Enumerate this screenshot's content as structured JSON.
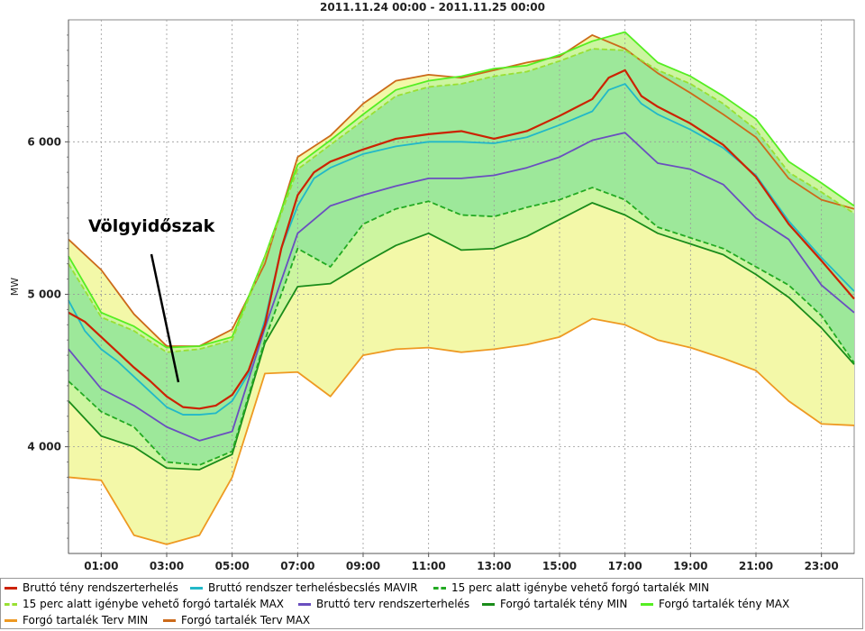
{
  "title": "2011.11.24 00:00 - 2011.11.25 00:00",
  "annotation": "Völgyidőszak",
  "chart_data": {
    "type": "line",
    "title": "2011.11.24 00:00 - 2011.11.25 00:00",
    "xlabel": "",
    "ylabel": "MW",
    "x_ticks": [
      "01:00",
      "03:00",
      "05:00",
      "07:00",
      "09:00",
      "11:00",
      "13:00",
      "15:00",
      "17:00",
      "19:00",
      "21:00",
      "23:00"
    ],
    "y_ticks": [
      4000,
      5000,
      6000
    ],
    "y_tick_labels": [
      "4 000",
      "5 000",
      "6 000"
    ],
    "ylim": [
      3300,
      6800
    ],
    "xlim": [
      0,
      24
    ],
    "grid": true,
    "legend_position": "bottom",
    "series": [
      {
        "name": "Bruttó tény rendszerterhelés",
        "color": "#cc2200",
        "style": "solid",
        "x": [
          0,
          0.5,
          1,
          1.5,
          2,
          2.5,
          3,
          3.5,
          4,
          4.5,
          5,
          5.5,
          6,
          6.5,
          7,
          7.5,
          8,
          9,
          10,
          11,
          12,
          13,
          14,
          15,
          16,
          16.5,
          17,
          17.5,
          18,
          19,
          20,
          21,
          22,
          23,
          24
        ],
        "y": [
          4880,
          4820,
          4720,
          4620,
          4520,
          4430,
          4330,
          4260,
          4250,
          4270,
          4340,
          4500,
          4800,
          5300,
          5650,
          5800,
          5870,
          5950,
          6020,
          6050,
          6070,
          6020,
          6070,
          6170,
          6280,
          6420,
          6470,
          6300,
          6230,
          6120,
          5980,
          5770,
          5460,
          5220,
          4970
        ]
      },
      {
        "name": "Bruttó rendszer terhelésbecslés MAVIR",
        "color": "#22b8c8",
        "style": "solid",
        "x": [
          0,
          0.5,
          1,
          1.5,
          2,
          2.5,
          3,
          3.5,
          4,
          4.5,
          5,
          5.5,
          6,
          6.5,
          7,
          7.5,
          8,
          9,
          10,
          11,
          12,
          13,
          14,
          15,
          16,
          16.5,
          17,
          17.5,
          18,
          19,
          20,
          21,
          22,
          23,
          24
        ],
        "y": [
          4960,
          4760,
          4640,
          4560,
          4460,
          4360,
          4260,
          4210,
          4210,
          4220,
          4300,
          4480,
          4830,
          5300,
          5580,
          5760,
          5830,
          5920,
          5970,
          6000,
          6000,
          5990,
          6030,
          6110,
          6200,
          6340,
          6380,
          6250,
          6180,
          6080,
          5960,
          5780,
          5480,
          5240,
          5020
        ]
      },
      {
        "name": "15 perc alatt igénybe vehető forgó tartalék MIN",
        "color": "#22aa22",
        "style": "dashed",
        "x": [
          0,
          1,
          2,
          3,
          4,
          5,
          6,
          7,
          8,
          9,
          10,
          11,
          12,
          13,
          14,
          15,
          16,
          17,
          18,
          19,
          20,
          21,
          22,
          23,
          24
        ],
        "y": [
          4430,
          4230,
          4130,
          3900,
          3880,
          3970,
          4700,
          5300,
          5180,
          5460,
          5560,
          5610,
          5520,
          5510,
          5570,
          5620,
          5700,
          5620,
          5440,
          5370,
          5300,
          5180,
          5060,
          4860,
          4550
        ]
      },
      {
        "name": "15 perc alatt igénybe vehető forgó tartalék MAX",
        "color": "#99e033",
        "style": "dashed",
        "x": [
          0,
          1,
          2,
          3,
          4,
          5,
          6,
          7,
          8,
          9,
          10,
          11,
          12,
          13,
          14,
          15,
          16,
          17,
          18,
          19,
          20,
          21,
          22,
          23,
          24
        ],
        "y": [
          5200,
          4850,
          4760,
          4620,
          4640,
          4700,
          5240,
          5820,
          5980,
          6140,
          6300,
          6360,
          6380,
          6430,
          6460,
          6530,
          6610,
          6600,
          6470,
          6380,
          6250,
          6080,
          5800,
          5670,
          5530
        ]
      },
      {
        "name": "Bruttó terv rendszerterhelés",
        "color": "#6a4fbf",
        "style": "solid",
        "x": [
          0,
          1,
          2,
          3,
          4,
          5,
          6,
          7,
          8,
          9,
          10,
          11,
          12,
          13,
          14,
          15,
          16,
          17,
          18,
          19,
          20,
          21,
          22,
          23,
          24
        ],
        "y": [
          4640,
          4380,
          4270,
          4130,
          4040,
          4100,
          4780,
          5400,
          5580,
          5650,
          5710,
          5760,
          5760,
          5780,
          5830,
          5900,
          6010,
          6060,
          5860,
          5820,
          5720,
          5500,
          5360,
          5060,
          4880
        ]
      },
      {
        "name": "Forgó tartalék tény MIN",
        "color": "#1a8c1a",
        "style": "solid",
        "x": [
          0,
          1,
          2,
          3,
          4,
          5,
          6,
          7,
          8,
          9,
          10,
          11,
          12,
          13,
          14,
          15,
          16,
          17,
          18,
          19,
          20,
          21,
          22,
          23,
          24
        ],
        "y": [
          4300,
          4070,
          4000,
          3860,
          3850,
          3950,
          4680,
          5050,
          5070,
          5200,
          5320,
          5400,
          5290,
          5300,
          5380,
          5490,
          5600,
          5520,
          5400,
          5330,
          5260,
          5130,
          4980,
          4780,
          4540
        ]
      },
      {
        "name": "Forgó tartalék tény MAX",
        "color": "#55ee22",
        "style": "solid",
        "x": [
          0,
          1,
          2,
          3,
          4,
          5,
          6,
          7,
          8,
          9,
          10,
          11,
          12,
          13,
          14,
          15,
          16,
          17,
          18,
          19,
          20,
          21,
          22,
          23,
          24
        ],
        "y": [
          5250,
          4880,
          4790,
          4650,
          4660,
          4720,
          5250,
          5850,
          6010,
          6180,
          6340,
          6400,
          6430,
          6480,
          6500,
          6570,
          6660,
          6720,
          6520,
          6430,
          6300,
          6150,
          5870,
          5730,
          5580
        ]
      },
      {
        "name": "Forgó tartalék Terv MIN",
        "color": "#ee9922",
        "style": "solid",
        "x": [
          0,
          1,
          2,
          3,
          4,
          5,
          6,
          7,
          8,
          9,
          10,
          11,
          12,
          13,
          14,
          15,
          16,
          17,
          18,
          19,
          20,
          21,
          22,
          23,
          24
        ],
        "y": [
          3800,
          3780,
          3420,
          3360,
          3420,
          3800,
          4480,
          4490,
          4330,
          4600,
          4640,
          4650,
          4620,
          4640,
          4670,
          4720,
          4840,
          4800,
          4700,
          4650,
          4580,
          4500,
          4300,
          4150,
          4140
        ]
      },
      {
        "name": "Forgó tartalék Terv MAX",
        "color": "#cc6a1a",
        "style": "solid",
        "x": [
          0,
          1,
          2,
          3,
          4,
          5,
          6,
          7,
          8,
          9,
          10,
          11,
          12,
          13,
          14,
          15,
          16,
          17,
          18,
          19,
          20,
          21,
          22,
          23,
          24
        ],
        "y": [
          5360,
          5160,
          4870,
          4660,
          4660,
          4770,
          5200,
          5900,
          6040,
          6250,
          6400,
          6440,
          6420,
          6470,
          6520,
          6560,
          6700,
          6610,
          6450,
          6320,
          6180,
          6030,
          5760,
          5620,
          5560
        ]
      }
    ]
  }
}
